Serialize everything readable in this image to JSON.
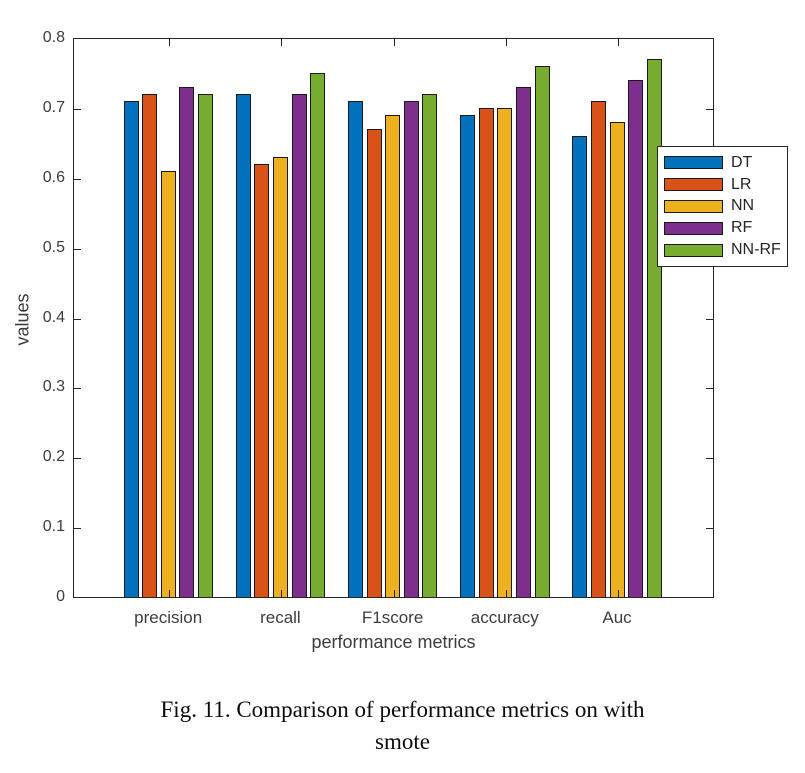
{
  "figure": {
    "caption_line1": "Fig. 11. Comparison of performance metrics on with",
    "caption_line2": "smote"
  },
  "chart_data": {
    "type": "bar",
    "title": "",
    "xlabel": "performance metrics",
    "ylabel": "values",
    "categories": [
      "precision",
      "recall",
      "F1score",
      "accuracy",
      "Auc"
    ],
    "series": [
      {
        "name": "DT",
        "color": "#0072BD",
        "values": [
          0.71,
          0.72,
          0.71,
          0.69,
          0.66
        ]
      },
      {
        "name": "LR",
        "color": "#D95319",
        "values": [
          0.72,
          0.62,
          0.67,
          0.7,
          0.71
        ]
      },
      {
        "name": "NN",
        "color": "#EDB120",
        "values": [
          0.61,
          0.63,
          0.69,
          0.7,
          0.68
        ]
      },
      {
        "name": "RF",
        "color": "#7E2F8E",
        "values": [
          0.73,
          0.72,
          0.71,
          0.73,
          0.74
        ]
      },
      {
        "name": "NN-RF",
        "color": "#77AC30",
        "values": [
          0.72,
          0.75,
          0.72,
          0.76,
          0.77
        ]
      }
    ],
    "ylim": [
      0,
      0.8
    ],
    "yticks": [
      0,
      0.1,
      0.2,
      0.3,
      0.4,
      0.5,
      0.6,
      0.7,
      0.8
    ],
    "ytick_labels": [
      "0",
      "0.1",
      "0.2",
      "0.3",
      "0.4",
      "0.5",
      "0.6",
      "0.7",
      "0.8"
    ],
    "grid": false,
    "legend_position": "right-inside",
    "legend_entries": [
      "DT",
      "LR",
      "NN",
      "RF",
      "NN-RF"
    ],
    "bar_edge_color": "#1a1a1a",
    "axis_color": "#262626",
    "background_color": "#ffffff"
  }
}
